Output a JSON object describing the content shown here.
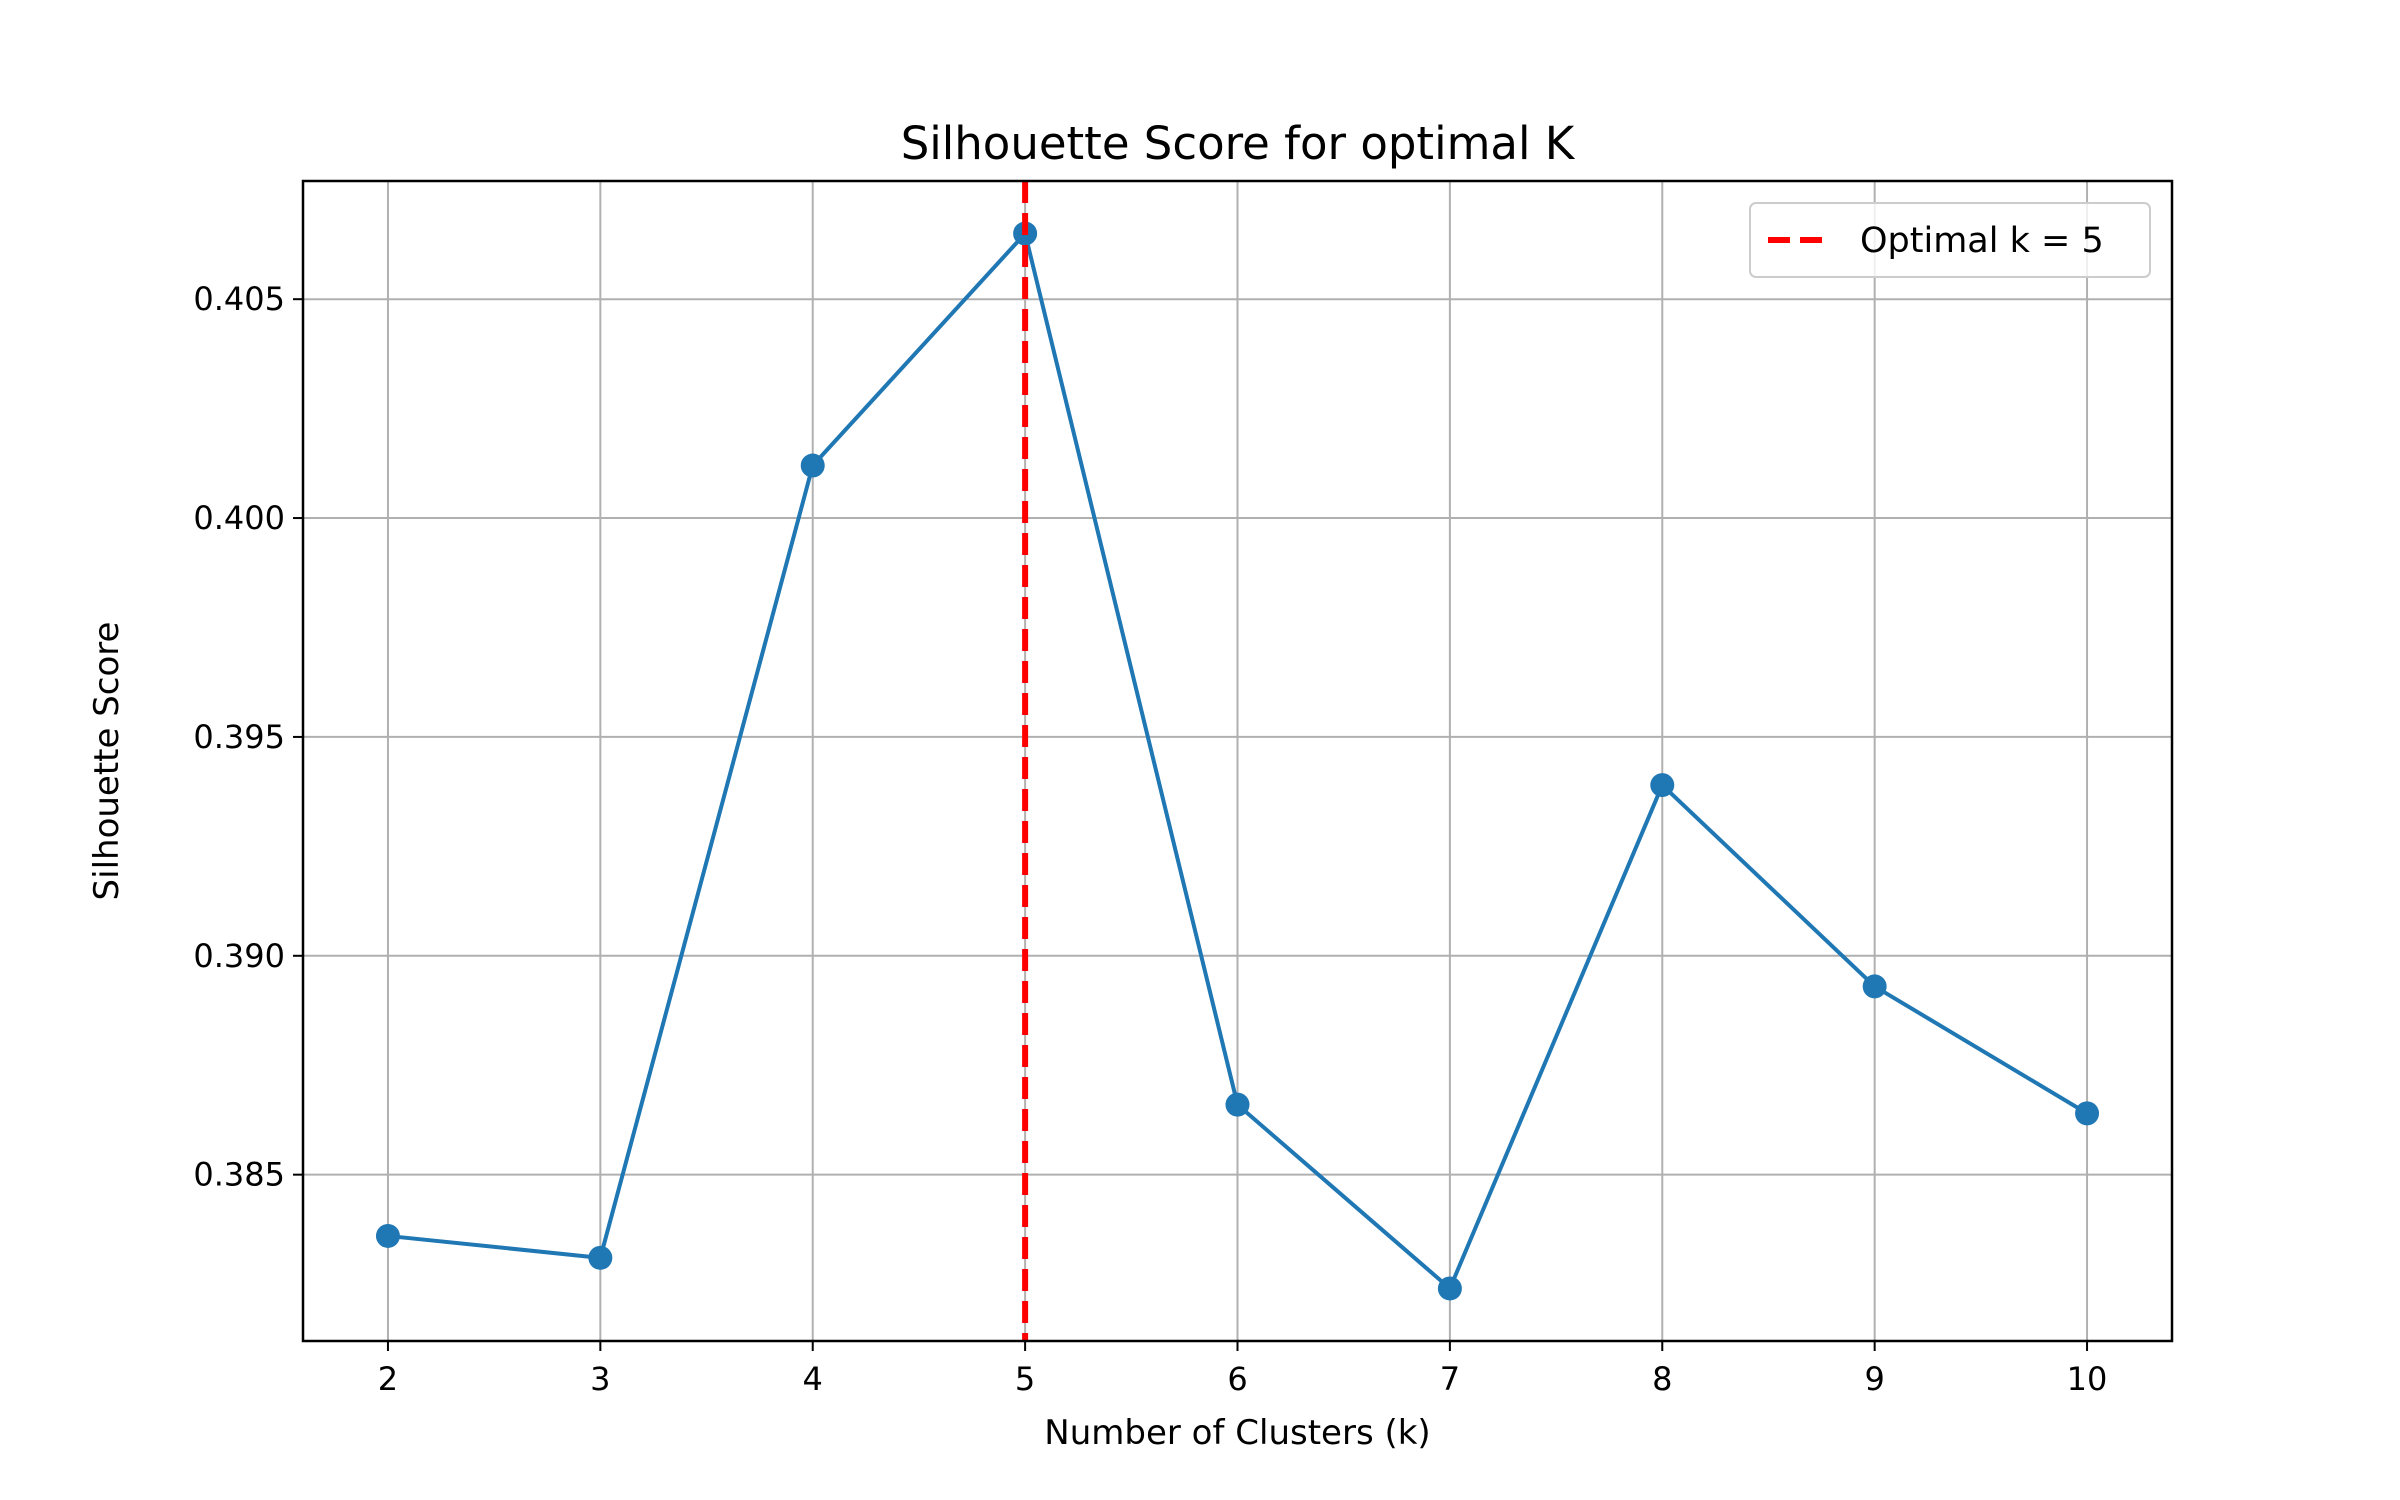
{
  "chart_data": {
    "type": "line",
    "title": "Silhouette Score for optimal K",
    "xlabel": "Number of Clusters (k)",
    "ylabel": "Silhouette Score",
    "x": [
      2,
      3,
      4,
      5,
      6,
      7,
      8,
      9,
      10
    ],
    "x_tick_labels": [
      "2",
      "3",
      "4",
      "5",
      "6",
      "7",
      "8",
      "9",
      "10"
    ],
    "y_ticks": [
      0.385,
      0.39,
      0.395,
      0.4,
      0.405
    ],
    "y_tick_labels": [
      "0.385",
      "0.390",
      "0.395",
      "0.400",
      "0.405"
    ],
    "xlim": [
      1.6,
      10.4
    ],
    "ylim": [
      0.3812,
      0.4077
    ],
    "grid": true,
    "series": [
      {
        "values": [
          0.3836,
          0.3831,
          0.4012,
          0.4065,
          0.3866,
          0.3824,
          0.3939,
          0.3893,
          0.3864
        ],
        "color": "#1f77b4",
        "marker": "circle"
      }
    ],
    "reference_line": {
      "orientation": "vertical",
      "x": 5,
      "label": "Optimal k = 5",
      "color": "#ff0000",
      "style": "dashed"
    },
    "legend": {
      "placement": "top-right",
      "entries": [
        "Optimal k = 5"
      ]
    }
  }
}
